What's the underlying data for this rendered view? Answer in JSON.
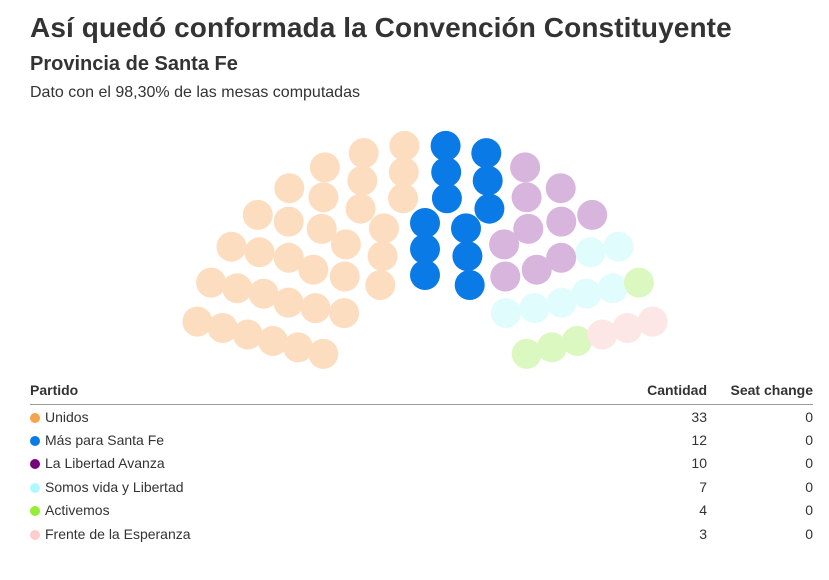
{
  "header": {
    "title": "Así quedó conformada la Convención Constituyente",
    "subtitle": "Provincia de Santa Fe",
    "note": "Dato con el 98,30% de las mesas computadas"
  },
  "chart_data": {
    "type": "parliament",
    "total_seats": 69,
    "columns": [
      "Partido",
      "Cantidad",
      "Seat change"
    ],
    "series": [
      {
        "name": "Unidos",
        "seats": 33,
        "seat_change": "0",
        "color": "#F7A24D",
        "seat_color": "#FDDDC0"
      },
      {
        "name": "Más para Santa Fe",
        "seats": 12,
        "seat_change": "0",
        "color": "#0A7BE6",
        "seat_color": "#0A7BE6"
      },
      {
        "name": "La Libertad Avanza",
        "seats": 10,
        "seat_change": "0",
        "color": "#76047A",
        "seat_color": "#D8B5DD"
      },
      {
        "name": "Somos vida y Libertad",
        "seats": 7,
        "seat_change": "0",
        "color": "#AEF9FC",
        "seat_color": "#E0FCFD"
      },
      {
        "name": "Activemos",
        "seats": 4,
        "seat_change": "0",
        "color": "#95ED36",
        "seat_color": "#DAF8BF"
      },
      {
        "name": "Frente de la Esperanza",
        "seats": 3,
        "seat_change": "0",
        "color": "#FDCCCC",
        "seat_color": "#FDE6E6"
      }
    ]
  }
}
